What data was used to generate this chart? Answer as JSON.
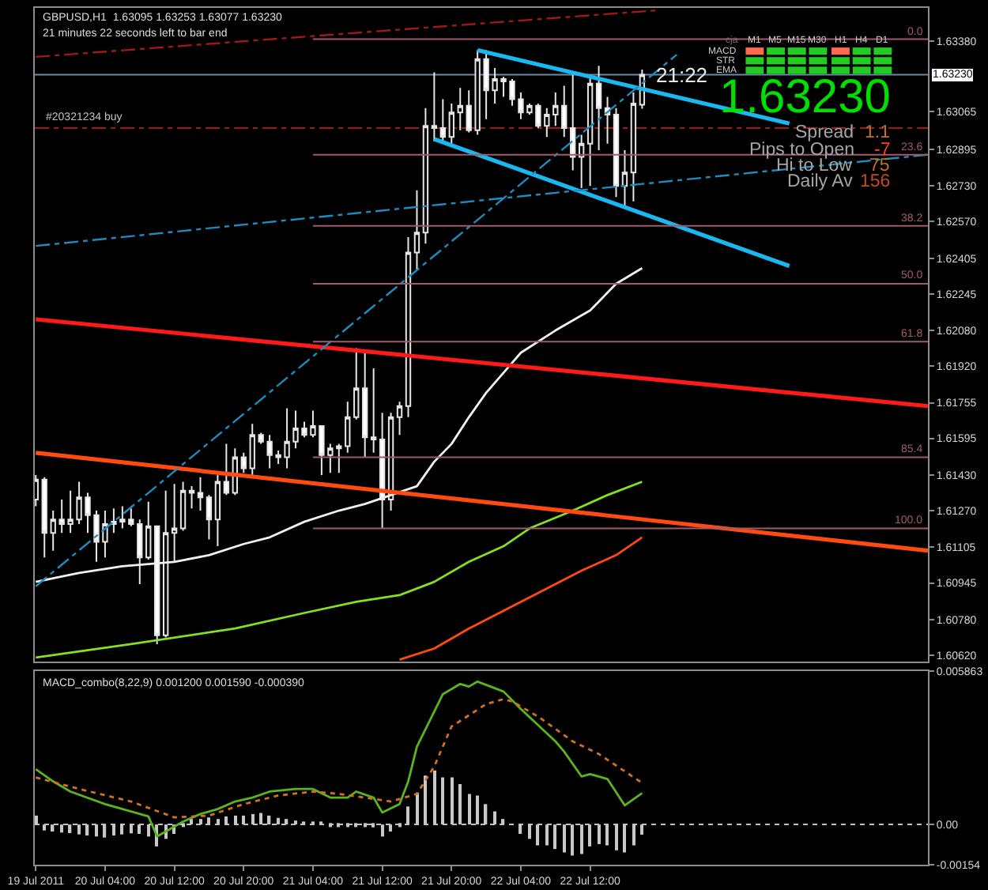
{
  "chart_data": [
    {
      "type": "candlestick",
      "title": "GBPUSD,H1  1.63095 1.63253 1.63077 1.63230",
      "subtitle": "21 minutes 22 seconds left to bar end",
      "x": [
        "2011-07-19T20:00",
        "2011-07-19T21:00",
        "2011-07-19T22:00",
        "2011-07-19T23:00",
        "2011-07-20T00:00",
        "2011-07-20T01:00",
        "2011-07-20T02:00",
        "2011-07-20T03:00",
        "2011-07-20T04:00",
        "2011-07-20T05:00",
        "2011-07-20T06:00",
        "2011-07-20T07:00",
        "2011-07-20T08:00",
        "2011-07-20T09:00",
        "2011-07-20T10:00",
        "2011-07-20T11:00",
        "2011-07-20T12:00",
        "2011-07-20T13:00",
        "2011-07-20T14:00",
        "2011-07-20T15:00",
        "2011-07-20T16:00",
        "2011-07-20T17:00",
        "2011-07-20T18:00",
        "2011-07-20T19:00",
        "2011-07-20T20:00",
        "2011-07-20T21:00",
        "2011-07-20T22:00",
        "2011-07-20T23:00",
        "2011-07-21T00:00",
        "2011-07-21T01:00",
        "2011-07-21T02:00",
        "2011-07-21T03:00",
        "2011-07-21T04:00",
        "2011-07-21T05:00",
        "2011-07-21T06:00",
        "2011-07-21T07:00",
        "2011-07-21T08:00",
        "2011-07-21T09:00",
        "2011-07-21T10:00",
        "2011-07-21T11:00",
        "2011-07-21T12:00",
        "2011-07-21T13:00",
        "2011-07-21T14:00",
        "2011-07-21T15:00",
        "2011-07-21T16:00",
        "2011-07-21T17:00",
        "2011-07-21T18:00",
        "2011-07-21T19:00",
        "2011-07-21T20:00",
        "2011-07-21T21:00",
        "2011-07-21T22:00",
        "2011-07-21T23:00",
        "2011-07-22T00:00",
        "2011-07-22T01:00",
        "2011-07-22T02:00",
        "2011-07-22T03:00",
        "2011-07-22T04:00",
        "2011-07-22T05:00",
        "2011-07-22T06:00",
        "2011-07-22T07:00",
        "2011-07-22T08:00",
        "2011-07-22T09:00",
        "2011-07-22T10:00",
        "2011-07-22T11:00",
        "2011-07-22T12:00",
        "2011-07-22T13:00",
        "2011-07-22T14:00",
        "2011-07-22T15:00",
        "2011-07-22T16:00",
        "2011-07-22T17:00",
        "2011-07-22T18:00"
      ],
      "ohlc": [
        [
          1.6132,
          1.6143,
          1.6129,
          1.6141
        ],
        [
          1.6141,
          1.6142,
          1.6106,
          1.6117
        ],
        [
          1.6117,
          1.6127,
          1.6109,
          1.6123
        ],
        [
          1.6123,
          1.6132,
          1.6117,
          1.6121
        ],
        [
          1.6121,
          1.6136,
          1.6117,
          1.6123
        ],
        [
          1.6123,
          1.614,
          1.6121,
          1.6133
        ],
        [
          1.6133,
          1.6135,
          1.6117,
          1.6125
        ],
        [
          1.6125,
          1.6127,
          1.6104,
          1.6113
        ],
        [
          1.6113,
          1.6127,
          1.6106,
          1.6121
        ],
        [
          1.6121,
          1.6128,
          1.6117,
          1.6122
        ],
        [
          1.6122,
          1.6129,
          1.6119,
          1.6123
        ],
        [
          1.6123,
          1.6128,
          1.612,
          1.6121
        ],
        [
          1.6121,
          1.6123,
          1.6094,
          1.6106
        ],
        [
          1.6106,
          1.6131,
          1.6105,
          1.612
        ],
        [
          1.612,
          1.612,
          1.6067,
          1.6071
        ],
        [
          1.6071,
          1.6136,
          1.607,
          1.6117
        ],
        [
          1.6117,
          1.6139,
          1.6104,
          1.6119
        ],
        [
          1.6119,
          1.614,
          1.6118,
          1.6136
        ],
        [
          1.6136,
          1.6138,
          1.6128,
          1.6135
        ],
        [
          1.6135,
          1.6142,
          1.6127,
          1.6133
        ],
        [
          1.6133,
          1.6134,
          1.6114,
          1.6123
        ],
        [
          1.6123,
          1.6143,
          1.6111,
          1.614
        ],
        [
          1.614,
          1.6157,
          1.6134,
          1.6135
        ],
        [
          1.6135,
          1.6155,
          1.6134,
          1.6151
        ],
        [
          1.6151,
          1.6153,
          1.6144,
          1.6146
        ],
        [
          1.6146,
          1.6166,
          1.6143,
          1.6161
        ],
        [
          1.6161,
          1.6162,
          1.6157,
          1.6158
        ],
        [
          1.6158,
          1.6161,
          1.6146,
          1.6152
        ],
        [
          1.6152,
          1.6154,
          1.6148,
          1.6151
        ],
        [
          1.6151,
          1.6173,
          1.6146,
          1.6158
        ],
        [
          1.6158,
          1.6172,
          1.6155,
          1.6164
        ],
        [
          1.6164,
          1.6167,
          1.616,
          1.6161
        ],
        [
          1.6161,
          1.6172,
          1.616,
          1.6165
        ],
        [
          1.6165,
          1.6165,
          1.6143,
          1.6152
        ],
        [
          1.6152,
          1.6157,
          1.6144,
          1.6155
        ],
        [
          1.6155,
          1.6157,
          1.6144,
          1.6156
        ],
        [
          1.6156,
          1.6176,
          1.6153,
          1.6169
        ],
        [
          1.6169,
          1.62,
          1.6168,
          1.6182
        ],
        [
          1.6182,
          1.6199,
          1.6151,
          1.616
        ],
        [
          1.616,
          1.6191,
          1.6153,
          1.6159
        ],
        [
          1.6159,
          1.6171,
          1.6119,
          1.6132
        ],
        [
          1.6132,
          1.6171,
          1.6127,
          1.6169
        ],
        [
          1.6169,
          1.6176,
          1.6161,
          1.6174
        ],
        [
          1.6174,
          1.625,
          1.6169,
          1.6243
        ],
        [
          1.6243,
          1.6271,
          1.6235,
          1.6252
        ],
        [
          1.6252,
          1.6308,
          1.6247,
          1.63
        ],
        [
          1.63,
          1.6324,
          1.6293,
          1.6299
        ],
        [
          1.6299,
          1.6312,
          1.6293,
          1.6295
        ],
        [
          1.6295,
          1.631,
          1.6292,
          1.6306
        ],
        [
          1.6306,
          1.6317,
          1.6298,
          1.6309
        ],
        [
          1.6309,
          1.6316,
          1.6297,
          1.6298
        ],
        [
          1.6298,
          1.6334,
          1.6296,
          1.633
        ],
        [
          1.633,
          1.6334,
          1.6303,
          1.6316
        ],
        [
          1.6316,
          1.6326,
          1.631,
          1.6321
        ],
        [
          1.6321,
          1.6322,
          1.6313,
          1.632
        ],
        [
          1.632,
          1.6321,
          1.6309,
          1.6312
        ],
        [
          1.6312,
          1.6315,
          1.6303,
          1.6306
        ],
        [
          1.6306,
          1.631,
          1.6305,
          1.6309
        ],
        [
          1.6309,
          1.631,
          1.6299,
          1.63
        ],
        [
          1.63,
          1.6308,
          1.6295,
          1.6305
        ],
        [
          1.6305,
          1.6315,
          1.63,
          1.6309
        ],
        [
          1.6309,
          1.6318,
          1.6295,
          1.6299
        ],
        [
          1.6299,
          1.6323,
          1.628,
          1.6286
        ],
        [
          1.6286,
          1.6296,
          1.6272,
          1.6292
        ],
        [
          1.6292,
          1.6323,
          1.6273,
          1.6319
        ],
        [
          1.6319,
          1.6327,
          1.6289,
          1.6308
        ],
        [
          1.6308,
          1.6313,
          1.6292,
          1.6305
        ],
        [
          1.6305,
          1.6308,
          1.6268,
          1.6273
        ],
        [
          1.6273,
          1.6289,
          1.6263,
          1.6279
        ],
        [
          1.6279,
          1.6315,
          1.6266,
          1.631
        ],
        [
          1.63095,
          1.63253,
          1.63077,
          1.6323
        ]
      ],
      "xlim": [
        "2011-07-19T19:53",
        "2011-07-24T03:00"
      ],
      "ylim": [
        1.6059,
        1.6353
      ],
      "yticks": [
        {
          "value": 1.6338,
          "label": "1.63380"
        },
        1.63065,
        1.62895,
        {
          "value": 1.6273,
          "label": "1.62730"
        },
        {
          "value": 1.6257,
          "label": "1.62570"
        },
        1.62405,
        1.62245,
        {
          "value": 1.6208,
          "label": "1.62080"
        },
        {
          "value": 1.6192,
          "label": "1.61920"
        },
        1.61755,
        1.61595,
        {
          "value": 1.6143,
          "label": "1.61430"
        },
        {
          "value": 1.6127,
          "label": "1.61270"
        },
        1.61105,
        1.60945,
        {
          "value": 1.6078,
          "label": "1.60780"
        },
        {
          "value": 1.6062,
          "label": "1.60620"
        }
      ],
      "tick_labels": "y",
      "series": [
        {
          "type": "line",
          "color": "#f0f0f0",
          "x": [
            "2011-07-19T20:00",
            "2011-07-20T01:00",
            "2011-07-20T06:00",
            "2011-07-20T09:00",
            "2011-07-20T12:00",
            "2011-07-20T16:00",
            "2011-07-20T20:00",
            "2011-07-20T23:00",
            "2011-07-21T03:00",
            "2011-07-21T07:00",
            "2011-07-21T10:00",
            "2011-07-21T13:00",
            "2011-07-21T16:00",
            "2011-07-21T18:00",
            "2011-07-21T20:00",
            "2011-07-21T22:00",
            "2011-07-22T00:00",
            "2011-07-22T02:00",
            "2011-07-22T04:00",
            "2011-07-22T08:00",
            "2011-07-22T12:00",
            "2011-07-22T15:00",
            "2011-07-22T18:00"
          ],
          "values": [
            1.6095,
            1.6099,
            1.6102,
            1.6103,
            1.6104,
            1.6107,
            1.6112,
            1.6115,
            1.6122,
            1.6127,
            1.613,
            1.6134,
            1.6138,
            1.6149,
            1.6157,
            1.6169,
            1.618,
            1.6189,
            1.6198,
            1.6208,
            1.6217,
            1.6229,
            1.6236
          ]
        },
        {
          "type": "line",
          "color": "#84e020",
          "x": [
            "2011-07-19T20:00",
            "2011-07-20T07:00",
            "2011-07-20T19:00",
            "2011-07-21T03:00",
            "2011-07-21T09:00",
            "2011-07-21T14:00",
            "2011-07-21T18:00",
            "2011-07-21T22:00",
            "2011-07-22T02:00",
            "2011-07-22T05:00",
            "2011-07-22T10:00",
            "2011-07-22T14:00",
            "2011-07-22T18:00"
          ],
          "values": [
            1.6061,
            1.6067,
            1.6074,
            1.6081,
            1.6086,
            1.6089,
            1.6095,
            1.6104,
            1.6111,
            1.6119,
            1.6127,
            1.6134,
            1.614
          ]
        },
        {
          "type": "line",
          "color": "#ff4a10",
          "x": [
            "2011-07-21T14:00",
            "2011-07-21T18:00",
            "2011-07-21T22:00",
            "2011-07-22T02:00",
            "2011-07-22T06:00",
            "2011-07-22T11:00",
            "2011-07-22T15:00",
            "2011-07-22T18:00"
          ],
          "values": [
            1.606,
            1.6065,
            1.6074,
            1.6082,
            1.609,
            1.61,
            1.6107,
            1.6115
          ]
        },
        {
          "type": "line",
          "color": "#1ab8f0",
          "x": [
            "2011-07-21T23:00",
            "2011-07-23T11:00"
          ],
          "values": [
            1.6334,
            1.6301
          ]
        },
        {
          "type": "line",
          "color": "#1ab8f0",
          "x": [
            "2011-07-21T18:00",
            "2011-07-23T11:00"
          ],
          "values": [
            1.6294,
            1.6237
          ]
        },
        {
          "type": "line",
          "color": "#ff1a1a",
          "x": [
            "2011-07-19T20:00",
            "2011-07-24T03:00"
          ],
          "values": [
            1.6213,
            1.6174
          ]
        },
        {
          "type": "line",
          "color": "#ff4a10",
          "x": [
            "2011-07-19T20:00",
            "2011-07-24T03:00"
          ],
          "values": [
            1.6153,
            1.6109
          ]
        },
        {
          "type": "line",
          "color": "#a01818",
          "line_style": "dashed",
          "x": [
            "2011-07-19T20:00",
            "2011-07-22T20:00"
          ],
          "values": [
            1.6331,
            1.6352
          ]
        },
        {
          "type": "line",
          "color": "#1e8cc0",
          "line_style": "dashed",
          "x": [
            "2011-07-19T20:00",
            "2011-07-24T03:00"
          ],
          "values": [
            1.6246,
            1.6287
          ]
        },
        {
          "type": "line",
          "color": "#1e8cc0",
          "line_style": "dashed",
          "x": [
            "2011-07-19T20:00",
            "2011-07-22T22:00"
          ],
          "values": [
            1.6093,
            1.6332
          ]
        },
        {
          "type": "line",
          "name": "0.0",
          "color": "#a05a6c",
          "x": [
            "2011-07-21T04:00",
            "2011-07-24T03:00"
          ],
          "values": [
            1.6339,
            1.6339
          ]
        },
        {
          "type": "line",
          "name": "23.6",
          "color": "#a05a6c",
          "x": [
            "2011-07-21T04:00",
            "2011-07-24T03:00"
          ],
          "values": [
            1.6287,
            1.6287
          ]
        },
        {
          "type": "line",
          "name": "38.2",
          "color": "#a05a6c",
          "x": [
            "2011-07-21T04:00",
            "2011-07-24T03:00"
          ],
          "values": [
            1.6255,
            1.6255
          ]
        },
        {
          "type": "line",
          "name": "50.0",
          "color": "#a05a6c",
          "x": [
            "2011-07-21T04:00",
            "2011-07-24T03:00"
          ],
          "values": [
            1.6229,
            1.6229
          ]
        },
        {
          "type": "line",
          "name": "61.8",
          "color": "#a05a6c",
          "x": [
            "2011-07-21T04:00",
            "2011-07-24T03:00"
          ],
          "values": [
            1.6203,
            1.6203
          ]
        },
        {
          "type": "line",
          "name": "85.4",
          "color": "#a05a6c",
          "x": [
            "2011-07-21T04:00",
            "2011-07-24T03:00"
          ],
          "values": [
            1.6151,
            1.6151
          ]
        },
        {
          "type": "line",
          "name": "100.0",
          "color": "#a05a6c",
          "x": [
            "2011-07-21T04:00",
            "2011-07-24T03:00"
          ],
          "values": [
            1.6119,
            1.6119
          ]
        }
      ],
      "ref_lines": [
        {
          "axis": "y",
          "value": 1.6299,
          "label": "#20321234 buy",
          "color": "#a01818",
          "line_style": "dashed"
        },
        {
          "axis": "y",
          "value": 1.6323,
          "label": "1.63230",
          "color": "#6a88a8"
        }
      ],
      "annotations": [
        {
          "text": "21:22",
          "x": "2011-07-22T18:00",
          "y": 1.6323
        },
        "1.63230",
        "Spread",
        "1.1",
        "Pips to Open",
        "-7",
        "Hi to Low",
        "75",
        "Daily Av",
        "156",
        "cja",
        "M1",
        "M5",
        "M15",
        "M30",
        "H1",
        "H4",
        "D1",
        "MACD",
        "STR",
        "EMA"
      ]
    },
    {
      "type": "bar",
      "title": "MACD_combo(8,22,9) 0.001200 0.001590 -0.000390",
      "x": [
        "2011-07-19T20:00",
        "2011-07-19T21:00",
        "2011-07-19T22:00",
        "2011-07-19T23:00",
        "2011-07-20T00:00",
        "2011-07-20T01:00",
        "2011-07-20T02:00",
        "2011-07-20T03:00",
        "2011-07-20T04:00",
        "2011-07-20T05:00",
        "2011-07-20T06:00",
        "2011-07-20T07:00",
        "2011-07-20T08:00",
        "2011-07-20T09:00",
        "2011-07-20T10:00",
        "2011-07-20T11:00",
        "2011-07-20T12:00",
        "2011-07-20T13:00",
        "2011-07-20T14:00",
        "2011-07-20T15:00",
        "2011-07-20T16:00",
        "2011-07-20T17:00",
        "2011-07-20T18:00",
        "2011-07-20T19:00",
        "2011-07-20T20:00",
        "2011-07-20T21:00",
        "2011-07-20T22:00",
        "2011-07-20T23:00",
        "2011-07-21T00:00",
        "2011-07-21T01:00",
        "2011-07-21T02:00",
        "2011-07-21T03:00",
        "2011-07-21T04:00",
        "2011-07-21T05:00",
        "2011-07-21T06:00",
        "2011-07-21T07:00",
        "2011-07-21T08:00",
        "2011-07-21T09:00",
        "2011-07-21T10:00",
        "2011-07-21T11:00",
        "2011-07-21T12:00",
        "2011-07-21T13:00",
        "2011-07-21T14:00",
        "2011-07-21T15:00",
        "2011-07-21T16:00",
        "2011-07-21T17:00",
        "2011-07-21T18:00",
        "2011-07-21T19:00",
        "2011-07-21T20:00",
        "2011-07-21T21:00",
        "2011-07-21T22:00",
        "2011-07-21T23:00",
        "2011-07-22T00:00",
        "2011-07-22T01:00",
        "2011-07-22T02:00",
        "2011-07-22T03:00",
        "2011-07-22T04:00",
        "2011-07-22T05:00",
        "2011-07-22T06:00",
        "2011-07-22T07:00",
        "2011-07-22T08:00",
        "2011-07-22T09:00",
        "2011-07-22T10:00",
        "2011-07-22T11:00",
        "2011-07-22T12:00",
        "2011-07-22T13:00",
        "2011-07-22T14:00",
        "2011-07-22T15:00",
        "2011-07-22T16:00",
        "2011-07-22T17:00",
        "2011-07-22T18:00"
      ],
      "series": [
        {
          "color": "#c8c8c8",
          "values": [
            0.00034,
            -0.00023,
            -0.00027,
            -0.00031,
            -0.00033,
            -0.00038,
            -0.00042,
            -0.00046,
            -0.0005,
            -0.00042,
            -0.00038,
            -0.00034,
            -0.00036,
            -0.00046,
            -0.00084,
            -0.00055,
            -0.00036,
            -0.0001,
            0.00021,
            0.00021,
            0.00027,
            0.00021,
            0.00031,
            0.00034,
            0.00034,
            0.0004,
            0.00044,
            0.00034,
            0.00025,
            0.00021,
            0.00015,
            0.00011,
            0.0001,
            0.0001,
            -0.0001,
            -0.0001,
            -0.0001,
            -0.0001,
            -0.0001,
            -0.00011,
            -0.00046,
            -0.00027,
            -0.0001,
            0.00069,
            0.00122,
            0.00187,
            0.00207,
            0.0018,
            0.0018,
            0.00155,
            0.00117,
            0.00111,
            0.00078,
            0.0005,
            0.00021,
            null,
            -0.00036,
            -0.00055,
            -0.0008,
            -0.0008,
            -0.00094,
            -0.00107,
            -0.00119,
            -0.00113,
            -0.00084,
            -0.00075,
            -0.0008,
            -0.00099,
            -0.00107,
            -0.0008,
            -0.00039
          ]
        },
        {
          "type": "line",
          "color": "#5ab41e",
          "x": [
            "2011-07-19T20:00",
            "2011-07-19T22:00",
            "2011-07-20T00:00",
            "2011-07-20T04:00",
            "2011-07-20T07:00",
            "2011-07-20T09:00",
            "2011-07-20T10:00",
            "2011-07-20T11:00",
            "2011-07-20T13:00",
            "2011-07-20T15:00",
            "2011-07-20T17:00",
            "2011-07-20T19:00",
            "2011-07-20T21:00",
            "2011-07-20T23:00",
            "2011-07-21T02:00",
            "2011-07-21T04:00",
            "2011-07-21T06:00",
            "2011-07-21T08:00",
            "2011-07-21T09:00",
            "2011-07-21T11:00",
            "2011-07-21T12:00",
            "2011-07-21T14:00",
            "2011-07-21T15:00",
            "2011-07-21T16:00",
            "2011-07-21T18:00",
            "2011-07-21T19:00",
            "2011-07-21T21:00",
            "2011-07-21T22:00",
            "2011-07-21T23:00",
            "2011-07-22T02:00",
            "2011-07-22T04:00",
            "2011-07-22T08:00",
            "2011-07-22T09:00",
            "2011-07-22T11:00",
            "2011-07-22T12:00",
            "2011-07-22T14:00",
            "2011-07-22T16:00",
            "2011-07-22T18:00"
          ],
          "values": [
            0.00212,
            0.00165,
            0.00126,
            0.00078,
            0.0005,
            0.00031,
            -0.00046,
            -0.00027,
            0.00011,
            0.0004,
            0.00059,
            0.00088,
            0.00103,
            0.00126,
            0.00136,
            0.00136,
            0.00103,
            0.00103,
            0.00126,
            0.00103,
            0.00046,
            0.00078,
            0.00165,
            0.00298,
            0.00432,
            0.00499,
            0.00538,
            0.00528,
            0.00547,
            0.00509,
            0.00442,
            0.00318,
            0.00279,
            0.00184,
            0.00193,
            0.00174,
            0.00073,
            0.0012
          ]
        },
        {
          "type": "line",
          "color": "#d2701e",
          "line_style": "dotted",
          "x": [
            "2011-07-19T20:00",
            "2011-07-20T01:00",
            "2011-07-20T07:00",
            "2011-07-20T12:00",
            "2011-07-20T16:00",
            "2011-07-20T20:00",
            "2011-07-21T00:00",
            "2011-07-21T04:00",
            "2011-07-21T07:00",
            "2011-07-21T11:00",
            "2011-07-21T13:00",
            "2011-07-21T16:00",
            "2011-07-21T18:00",
            "2011-07-21T20:00",
            "2011-07-22T00:00",
            "2011-07-22T02:00",
            "2011-07-22T03:00",
            "2011-07-22T06:00",
            "2011-07-22T10:00",
            "2011-07-22T13:00",
            "2011-07-22T18:00"
          ],
          "values": [
            0.0018,
            0.00136,
            0.00088,
            0.00027,
            0.00034,
            0.00078,
            0.00111,
            0.00126,
            0.00117,
            0.00098,
            0.00088,
            0.00117,
            0.00222,
            0.00375,
            0.00461,
            0.0048,
            0.00471,
            0.00413,
            0.00318,
            0.0027,
            0.00159
          ]
        }
      ],
      "xlim": [
        "2011-07-19T19:53",
        "2011-07-24T03:00"
      ],
      "xticks": [
        {
          "value": "2011-07-19T20:00",
          "label": "19 Jul 2011"
        },
        {
          "value": "2011-07-20T04:00",
          "label": "20 Jul 04:00"
        },
        {
          "value": "2011-07-20T12:00",
          "label": "20 Jul 12:00"
        },
        {
          "value": "2011-07-20T20:00",
          "label": "20 Jul 20:00"
        },
        {
          "value": "2011-07-21T04:00",
          "label": "21 Jul 04:00"
        },
        {
          "value": "2011-07-21T12:00",
          "label": "21 Jul 12:00"
        },
        {
          "value": "2011-07-21T20:00",
          "label": "21 Jul 20:00"
        },
        {
          "value": "2011-07-22T04:00",
          "label": "22 Jul 04:00"
        },
        {
          "value": "2011-07-22T12:00",
          "label": "22 Jul 12:00"
        }
      ],
      "ylim": [
        -0.00154,
        0.005863
      ],
      "yticks": [
        0.005863,
        {
          "value": 0,
          "label": "0.00"
        },
        -0.00154
      ],
      "ref_lines": [
        {
          "axis": "y",
          "value": 0,
          "color": "#c0c0c0",
          "line_style": "dotted"
        }
      ]
    }
  ]
}
